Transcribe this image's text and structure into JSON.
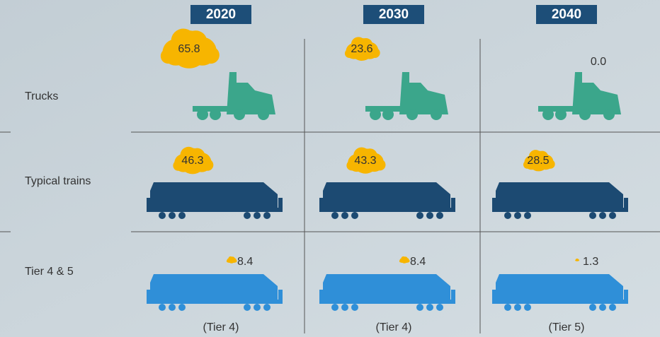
{
  "columns": [
    "2020",
    "2030",
    "2040"
  ],
  "rows": [
    {
      "label": "Trucks",
      "values": [
        "65.8",
        "23.6",
        "0.0"
      ]
    },
    {
      "label": "Typical trains",
      "values": [
        "46.3",
        "43.3",
        "28.5"
      ]
    },
    {
      "label": "Tier 4 & 5",
      "values": [
        "8.4",
        "8.4",
        "1.3"
      ],
      "notes": [
        "(Tier 4)",
        "(Tier 4)",
        "(Tier 5)"
      ]
    }
  ]
}
